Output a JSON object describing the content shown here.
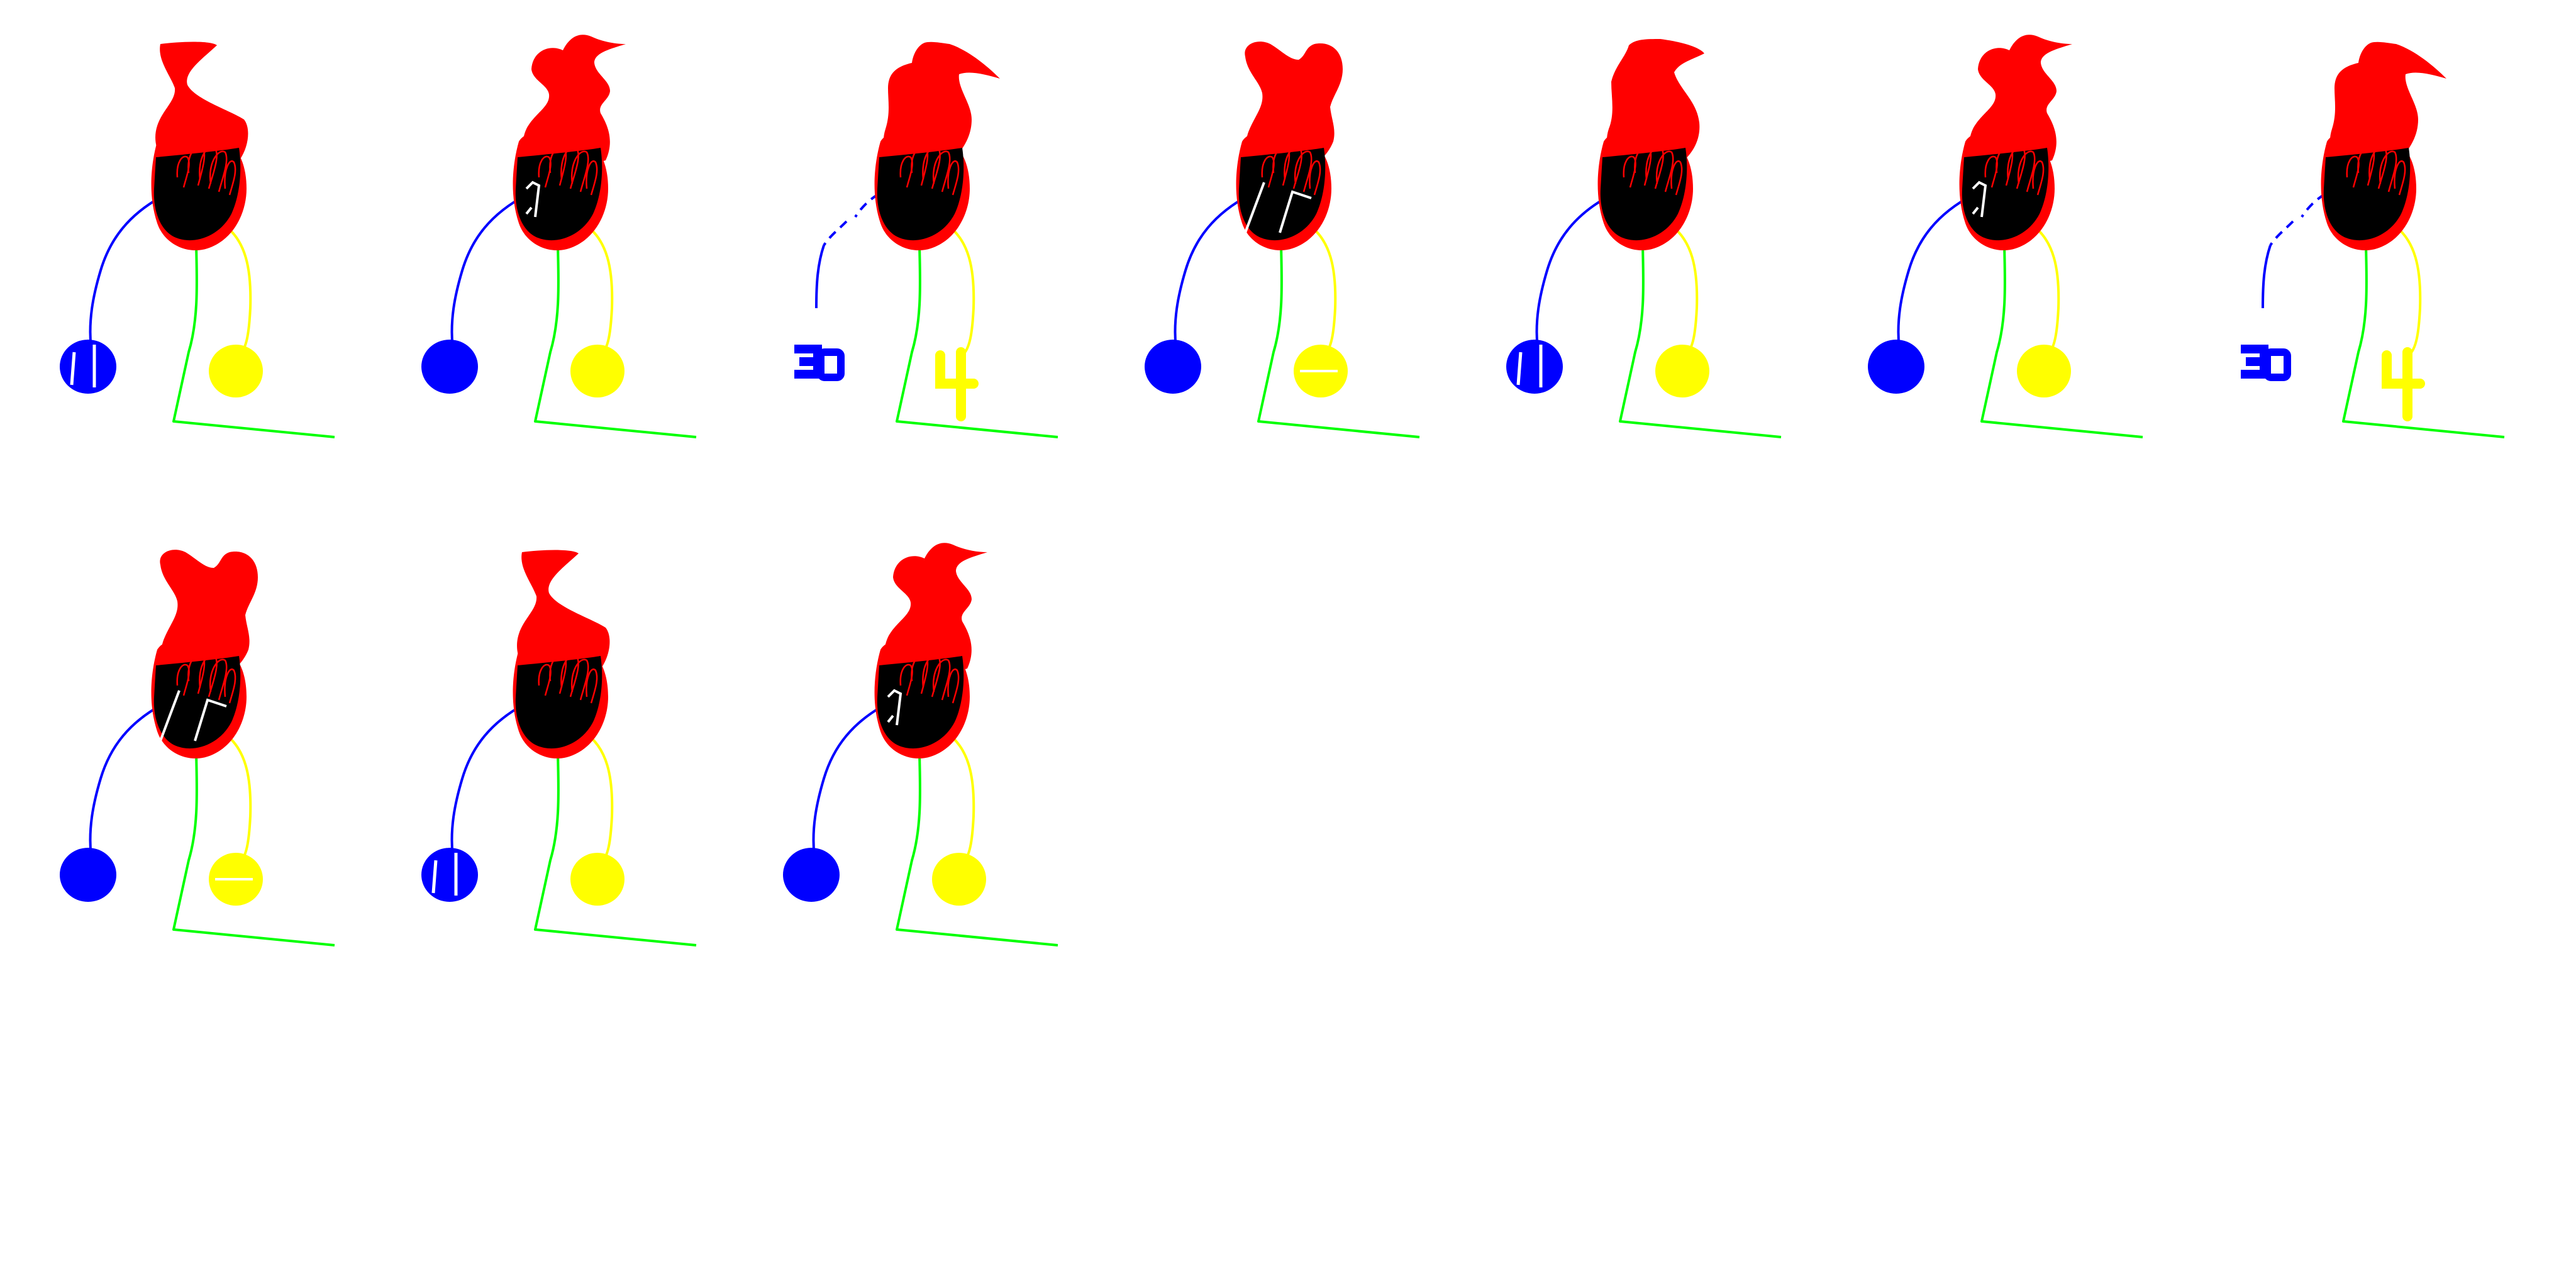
{
  "sheet": {
    "background": "#ffffff",
    "columns": 7,
    "frame_count": 10
  },
  "palette": {
    "head": "#ff0000",
    "face": "#000000",
    "left_limb": "#0000ff",
    "right_limb": "#ffff00",
    "body_ground": "#00ff00",
    "detail": "#ffffff"
  },
  "frames": [
    {
      "variant": "glitch-orbs",
      "head_flame": "flame-left"
    },
    {
      "variant": "glasses",
      "head_flame": "flame-wave"
    },
    {
      "variant": "digits",
      "head_flame": "flame-point",
      "left_glyph": "3b",
      "right_glyph": "4"
    },
    {
      "variant": "sunglasses",
      "head_flame": "flame-loop"
    },
    {
      "variant": "glitch-orbs",
      "head_flame": "flame-curl"
    },
    {
      "variant": "glasses",
      "head_flame": "flame-wave"
    },
    {
      "variant": "digits",
      "head_flame": "flame-point",
      "left_glyph": "3b",
      "right_glyph": "4"
    },
    {
      "variant": "sunglasses",
      "head_flame": "flame-loop"
    },
    {
      "variant": "glitch-orbs",
      "head_flame": "flame-left"
    },
    {
      "variant": "glasses",
      "head_flame": "flame-wave"
    }
  ]
}
